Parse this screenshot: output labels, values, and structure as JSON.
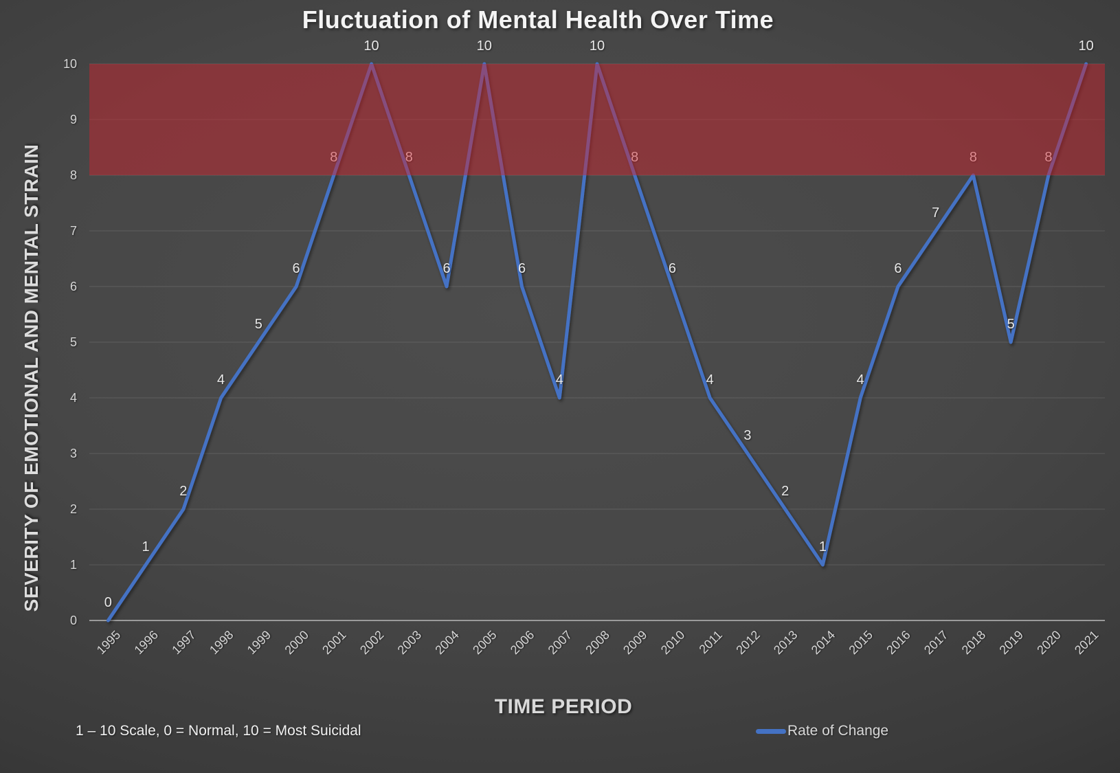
{
  "title": "Fluctuation of Mental Health Over Time",
  "footnote": "1 – 10 Scale, 0 = Normal, 10 = Most Suicidal",
  "legend": {
    "label": "Rate of Change"
  },
  "chart_data": {
    "type": "line",
    "title": "Fluctuation of Mental Health Over Time",
    "xlabel": "TIME PERIOD",
    "ylabel": "SEVERITY OF EMOTIONAL AND MENTAL STRAIN",
    "categories": [
      "1995",
      "1996",
      "1997",
      "1998",
      "1999",
      "2000",
      "2001",
      "2002",
      "2003",
      "2004",
      "2005",
      "2006",
      "2007",
      "2008",
      "2009",
      "2010",
      "2011",
      "2012",
      "2013",
      "2014",
      "2015",
      "2016",
      "2017",
      "2018",
      "2019",
      "2020",
      "2021"
    ],
    "series": [
      {
        "name": "Rate of Change",
        "color": "#4472C4",
        "values": [
          0,
          1,
          2,
          4,
          5,
          6,
          8,
          10,
          8,
          6,
          10,
          6,
          4,
          10,
          8,
          6,
          4,
          3,
          2,
          1,
          4,
          6,
          7,
          8,
          5,
          8,
          10
        ]
      }
    ],
    "ylim": [
      0,
      10
    ],
    "yticks": [
      0,
      1,
      2,
      3,
      4,
      5,
      6,
      7,
      8,
      9,
      10
    ],
    "grid": "horizontal",
    "data_labels": true,
    "legend_position": "bottom-right",
    "highlight_band": {
      "from": 8,
      "to": 10,
      "color": "rgba(208,36,46,0.47)"
    }
  }
}
